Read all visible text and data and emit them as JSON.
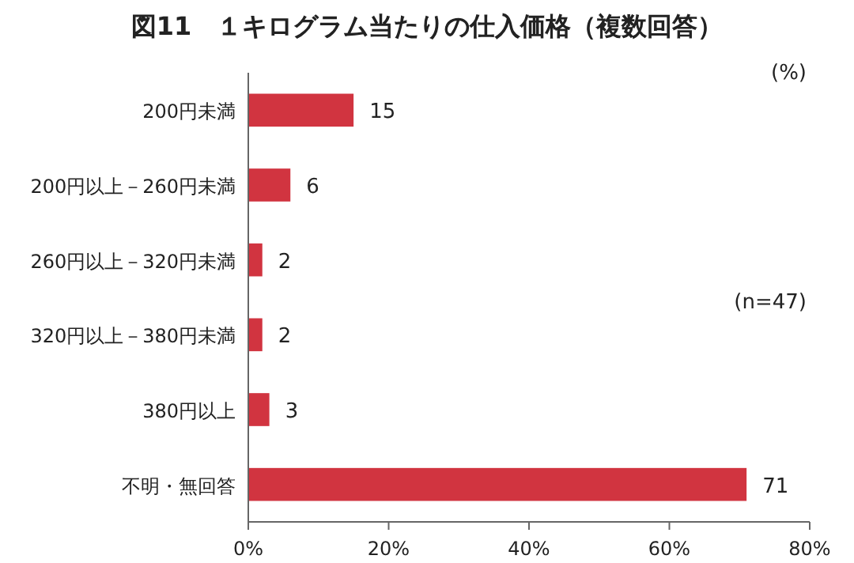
{
  "chart_data": {
    "type": "bar",
    "orientation": "horizontal",
    "title": "図11　１キログラム当たりの仕入価格（複数回答）",
    "categories": [
      "200円未満",
      "200円以上－260円未満",
      "260円以上－320円未満",
      "320円以上－380円未満",
      "380円以上",
      "不明・無回答"
    ],
    "values": [
      15,
      6,
      2,
      2,
      3,
      71
    ],
    "color": "#d13440",
    "data_labels": true,
    "xlim": [
      0,
      80
    ],
    "xticks": [
      {
        "value": 0,
        "label": "0%"
      },
      {
        "value": 20,
        "label": "20%"
      },
      {
        "value": 40,
        "label": "40%"
      },
      {
        "value": 60,
        "label": "60%"
      },
      {
        "value": 80,
        "label": "80%"
      }
    ],
    "grid": false,
    "annotations": [
      "(%)",
      "(n=47)"
    ]
  }
}
